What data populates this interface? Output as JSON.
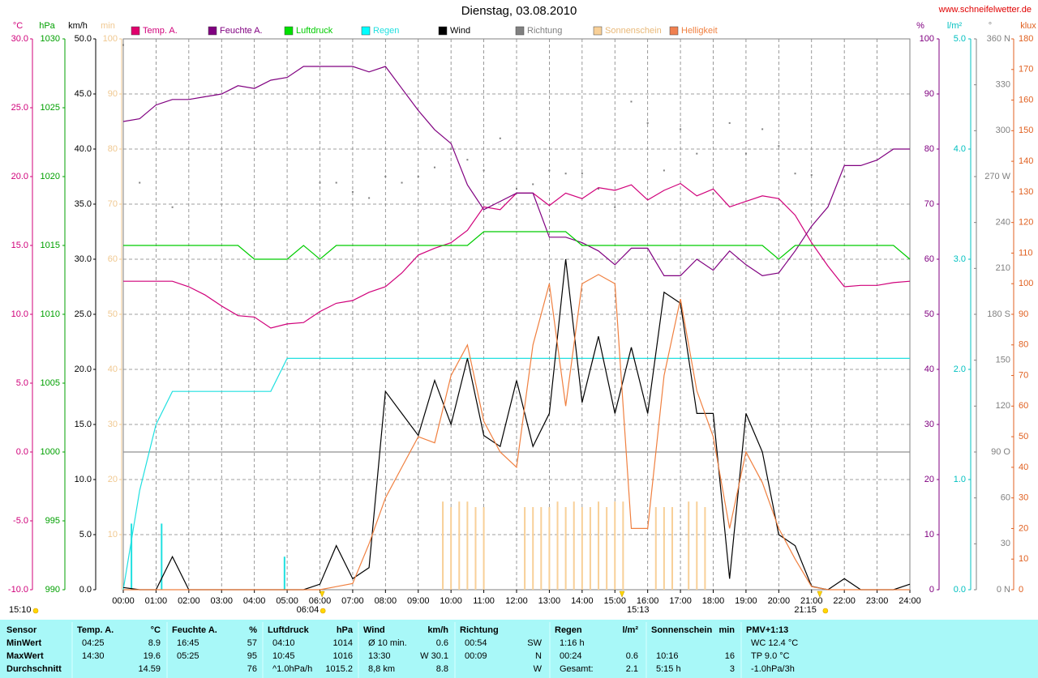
{
  "chart_data": {
    "type": "line",
    "title": "Dienstag, 03.08.2010",
    "source": "www.schneifelwetter.de",
    "xlim": [
      0,
      24
    ],
    "xticks": [
      {
        "value": 0,
        "label": "00:00"
      },
      {
        "value": 1,
        "label": "01:00"
      },
      {
        "value": 2,
        "label": "02:00"
      },
      {
        "value": 3,
        "label": "03:00"
      },
      {
        "value": 4,
        "label": "04:00"
      },
      {
        "value": 5,
        "label": "05:00"
      },
      {
        "value": 6,
        "label": "06:00"
      },
      {
        "value": 7,
        "label": "07:00"
      },
      {
        "value": 8,
        "label": "08:00"
      },
      {
        "value": 9,
        "label": "09:00"
      },
      {
        "value": 10,
        "label": "10:00"
      },
      {
        "value": 11,
        "label": "11:00"
      },
      {
        "value": 12,
        "label": "12:00"
      },
      {
        "value": 13,
        "label": "13:00"
      },
      {
        "value": 14,
        "label": "14:00"
      },
      {
        "value": 15,
        "label": "15:00"
      },
      {
        "value": 16,
        "label": "16:00"
      },
      {
        "value": 17,
        "label": "17:00"
      },
      {
        "value": 18,
        "label": "18:00"
      },
      {
        "value": 19,
        "label": "19:00"
      },
      {
        "value": 20,
        "label": "20:00"
      },
      {
        "value": 21,
        "label": "21:00"
      },
      {
        "value": 22,
        "label": "22:00"
      },
      {
        "value": 23,
        "label": "23:00"
      },
      {
        "value": 24,
        "label": "24:00"
      }
    ],
    "grid": true,
    "grid_axis": 2,
    "axes": [
      {
        "unit": "°C",
        "color": "#d0007a",
        "lim": [
          -10,
          30
        ],
        "ticks": [
          {
            "value": -10,
            "label": "-10.0"
          },
          {
            "value": -5,
            "label": "-5.0"
          },
          {
            "value": 0,
            "label": "0.0"
          },
          {
            "value": 5,
            "label": "5.0"
          },
          {
            "value": 10,
            "label": "10.0"
          },
          {
            "value": 15,
            "label": "15.0"
          },
          {
            "value": 20,
            "label": "20.0"
          },
          {
            "value": 25,
            "label": "25.0"
          },
          {
            "value": 30,
            "label": "30.0"
          }
        ]
      },
      {
        "unit": "hPa",
        "color": "#00a000",
        "lim": [
          990,
          1030
        ],
        "ticks": [
          990,
          995,
          1000,
          1005,
          1010,
          1015,
          1020,
          1025,
          1030
        ]
      },
      {
        "unit": "km/h",
        "color": "#000000",
        "lim": [
          0,
          50
        ],
        "ticks": [
          {
            "value": 0,
            "label": "0.0"
          },
          {
            "value": 5,
            "label": "5.0"
          },
          {
            "value": 10,
            "label": "10.0"
          },
          {
            "value": 15,
            "label": "15.0"
          },
          {
            "value": 20,
            "label": "20.0"
          },
          {
            "value": 25,
            "label": "25.0"
          },
          {
            "value": 30,
            "label": "30.0"
          },
          {
            "value": 35,
            "label": "35.0"
          },
          {
            "value": 40,
            "label": "40.0"
          },
          {
            "value": 45,
            "label": "45.0"
          },
          {
            "value": 50,
            "label": "50.0"
          }
        ]
      },
      {
        "unit": "min",
        "color": "#f0c890",
        "lim": [
          0,
          100
        ],
        "ticks": [
          10,
          20,
          30,
          40,
          50,
          60,
          70,
          80,
          90,
          100
        ]
      },
      {
        "unit": "%",
        "color": "#800080",
        "lim": [
          0,
          100
        ],
        "ticks": [
          0,
          10,
          20,
          30,
          40,
          50,
          60,
          70,
          80,
          90,
          100
        ]
      },
      {
        "unit": "l/m²",
        "color": "#00c0c0",
        "lim": [
          0,
          5
        ],
        "ticks": [
          {
            "value": 0,
            "label": "0.0"
          },
          {
            "value": 1,
            "label": "1.0"
          },
          {
            "value": 2,
            "label": "2.0"
          },
          {
            "value": 3,
            "label": "3.0"
          },
          {
            "value": 4,
            "label": "4.0"
          },
          {
            "value": 5,
            "label": "5.0"
          }
        ]
      },
      {
        "unit": "°",
        "color": "#808080",
        "lim": [
          0,
          360
        ],
        "ticks": [
          {
            "value": 0,
            "label": "0 N"
          },
          30,
          60,
          {
            "value": 90,
            "label": "90 O"
          },
          120,
          150,
          {
            "value": 180,
            "label": "180 S"
          },
          210,
          240,
          {
            "value": 270,
            "label": "270 W"
          },
          300,
          330,
          {
            "value": 360,
            "label": "360 N"
          }
        ]
      },
      {
        "unit": "klux",
        "color": "#e06020",
        "lim": [
          0,
          180
        ],
        "ticks": [
          0,
          10,
          20,
          30,
          40,
          50,
          60,
          70,
          80,
          90,
          100,
          110,
          120,
          130,
          140,
          150,
          160,
          170,
          180
        ]
      }
    ],
    "x": [
      0,
      0.5,
      1,
      1.5,
      2,
      2.5,
      3,
      3.5,
      4,
      4.5,
      5,
      5.5,
      6,
      6.5,
      7,
      7.5,
      8,
      8.5,
      9,
      9.5,
      10,
      10.5,
      11,
      11.5,
      12,
      12.5,
      13,
      13.5,
      14,
      14.5,
      15,
      15.5,
      16,
      16.5,
      17,
      17.5,
      18,
      18.5,
      19,
      19.5,
      20,
      20.5,
      21,
      21.5,
      22,
      22.5,
      23,
      23.5,
      24
    ],
    "series": [
      {
        "name": "Temp. A.",
        "color": "#d0007a",
        "legend_color": "#e0006c",
        "axis": 0,
        "type": "line",
        "values": [
          12.4,
          12.4,
          12.4,
          12.4,
          12.0,
          11.4,
          10.6,
          9.9,
          9.8,
          9.0,
          9.3,
          9.4,
          10.2,
          10.8,
          11.0,
          11.6,
          12.0,
          13.0,
          14.3,
          14.8,
          15.2,
          16.1,
          17.8,
          17.6,
          18.8,
          18.8,
          17.9,
          18.8,
          18.4,
          19.2,
          19.0,
          19.4,
          18.3,
          19.0,
          19.5,
          18.6,
          19.1,
          17.8,
          18.2,
          18.6,
          18.4,
          17.2,
          15.2,
          13.5,
          12.0,
          12.1,
          12.1,
          12.3,
          12.4
        ]
      },
      {
        "name": "Feuchte A.",
        "color": "#800080",
        "legend_color": "#800080",
        "axis": 4,
        "type": "line",
        "values": [
          85,
          85.5,
          88,
          89,
          89,
          89.5,
          90,
          91.5,
          91,
          92.5,
          93,
          95,
          95,
          95,
          95,
          94,
          95,
          91,
          87,
          83.5,
          81,
          73.5,
          69,
          70.5,
          72,
          72,
          64,
          64,
          63,
          61.5,
          59,
          62,
          62,
          57,
          57,
          60,
          58,
          61.5,
          59,
          57,
          57.5,
          61.5,
          66,
          69.5,
          77,
          77,
          78,
          80,
          80
        ]
      },
      {
        "name": "Luftdruck",
        "color": "#00cc00",
        "legend_color": "#00e000",
        "axis": 1,
        "type": "line",
        "values": [
          1015,
          1015,
          1015,
          1015,
          1015,
          1015,
          1015,
          1015,
          1014,
          1014,
          1014,
          1015,
          1014,
          1015,
          1015,
          1015,
          1015,
          1015,
          1015,
          1015,
          1015,
          1015,
          1016,
          1016,
          1016,
          1016,
          1016,
          1016,
          1015,
          1015,
          1015,
          1015,
          1015,
          1015,
          1015,
          1015,
          1015,
          1015,
          1015,
          1015,
          1014,
          1015,
          1015,
          1015,
          1015,
          1015,
          1015,
          1015,
          1014
        ]
      },
      {
        "name": "Regen",
        "color": "#20e0e0",
        "legend_color": "#00ffff",
        "axis": 5,
        "type": "line",
        "values": [
          0,
          0.9,
          1.5,
          1.8,
          1.8,
          1.8,
          1.8,
          1.8,
          1.8,
          1.8,
          2.1,
          2.1,
          2.1,
          2.1,
          2.1,
          2.1,
          2.1,
          2.1,
          2.1,
          2.1,
          2.1,
          2.1,
          2.1,
          2.1,
          2.1,
          2.1,
          2.1,
          2.1,
          2.1,
          2.1,
          2.1,
          2.1,
          2.1,
          2.1,
          2.1,
          2.1,
          2.1,
          2.1,
          2.1,
          2.1,
          2.1,
          2.1,
          2.1,
          2.1,
          2.1,
          2.1,
          2.1,
          2.1,
          2.1
        ],
        "bars": {
          "x": [
            0.25,
            1.17,
            4.92
          ],
          "values": [
            0.6,
            0.6,
            0.3
          ]
        }
      },
      {
        "name": "Wind",
        "color": "#000000",
        "legend_color": "#000000",
        "axis": 2,
        "type": "line",
        "values": [
          0.2,
          0,
          0,
          3,
          0,
          0,
          0,
          0,
          0,
          0,
          0,
          0,
          0.5,
          4,
          1,
          2,
          18,
          16,
          14,
          19,
          15,
          21,
          14,
          13,
          19,
          13,
          16,
          30,
          17,
          23,
          16,
          22,
          16,
          27,
          26,
          16,
          16,
          1,
          16,
          12.5,
          5,
          4,
          0.3,
          0,
          1,
          0,
          0,
          0,
          0.5
        ]
      },
      {
        "name": "Richtung",
        "color": "#808080",
        "legend_color": "#808080",
        "axis": 6,
        "type": "dots",
        "values": [
          356,
          266,
          null,
          250,
          null,
          null,
          null,
          null,
          null,
          null,
          null,
          null,
          266,
          266,
          260,
          256,
          270,
          266,
          270,
          276,
          288,
          281,
          274,
          295,
          262,
          265,
          274,
          272,
          272,
          262,
          250,
          319,
          305,
          274,
          301,
          285,
          259,
          305,
          285,
          301,
          290,
          272,
          271,
          null,
          270,
          null,
          null,
          null,
          null
        ]
      },
      {
        "name": "Sonnenschein",
        "color": "#f8d098",
        "legend_color": "#f8d098",
        "axis": 3,
        "type": "bar",
        "x": [
          9.75,
          10,
          10.25,
          10.5,
          10.75,
          11,
          12.25,
          12.5,
          12.75,
          13,
          13.25,
          13.5,
          13.75,
          14,
          14.25,
          14.5,
          14.75,
          15,
          15.25,
          16.25,
          16.5,
          16.75,
          17.25,
          17.5,
          17.75
        ],
        "values": [
          16,
          15,
          16,
          16,
          15,
          15,
          15,
          15,
          15,
          15,
          16,
          15,
          16,
          15,
          15,
          16,
          15,
          16,
          16,
          15,
          15,
          15,
          16,
          16,
          15
        ]
      },
      {
        "name": "Helligkeit",
        "color": "#f08040",
        "legend_color": "#f08050",
        "axis": 7,
        "type": "line",
        "values": [
          0,
          0,
          0,
          0,
          0,
          0,
          0,
          0,
          0,
          0,
          0,
          0,
          0,
          1,
          2,
          15,
          30,
          40,
          50,
          48,
          70,
          80,
          55,
          45,
          40,
          80,
          100,
          60,
          100,
          103,
          100,
          20,
          20,
          70,
          95,
          65,
          50,
          20,
          45,
          35,
          20,
          10,
          1,
          0,
          0,
          0,
          0,
          0,
          0
        ]
      }
    ],
    "sun": {
      "day_length": "15:10",
      "events": [
        {
          "x": 6.067,
          "label": "06:04"
        },
        {
          "x": 15.217,
          "label": "15:13"
        },
        {
          "x": 21.25,
          "label": "21:15"
        }
      ]
    }
  },
  "table": {
    "header": [
      {
        "l": "Sensor"
      },
      {
        "l": "Temp. A.",
        "r": "°C"
      },
      {
        "l": "Feuchte A.",
        "r": "%"
      },
      {
        "l": "Luftdruck",
        "r": "hPa"
      },
      {
        "l": "Wind",
        "r": "km/h"
      },
      {
        "l": "Richtung"
      },
      {
        "l": "Regen",
        "r": "l/m²"
      },
      {
        "l": "Sonnenschein",
        "r": "min"
      },
      {
        "l": "PMV+1:13"
      }
    ],
    "rows": [
      [
        {
          "l": "MinWert"
        },
        {
          "l": "04:25",
          "r": "8.9"
        },
        {
          "l": "16:45",
          "r": "57"
        },
        {
          "l": "04:10",
          "r": "1014"
        },
        {
          "l": "Ø 10 min.",
          "r": "0.6"
        },
        {
          "l": "00:54",
          "r": "SW"
        },
        {
          "l": "1:16 h"
        },
        null,
        {
          "l": "WC 12.4 °C"
        }
      ],
      [
        {
          "l": "MaxWert"
        },
        {
          "l": "14:30",
          "r": "19.6"
        },
        {
          "l": "05:25",
          "r": "95"
        },
        {
          "l": "10:45",
          "r": "1016"
        },
        {
          "l": "13:30",
          "r": "W 30.1"
        },
        {
          "l": "00:09",
          "r": "N"
        },
        {
          "l": "00:24",
          "r": "0.6"
        },
        {
          "l": "10:16",
          "r": "16"
        },
        {
          "l": "TP 9.0 °C"
        }
      ],
      [
        {
          "l": "Durchschnitt"
        },
        {
          "r": "14.59"
        },
        {
          "r": "76"
        },
        {
          "l": "^1.0hPa/h",
          "r": "1015.2"
        },
        {
          "l": "8,8 km",
          "r": "8.8"
        },
        {
          "r": "W"
        },
        {
          "l": "Gesamt:",
          "r": "2.1"
        },
        {
          "l": "5:15 h",
          "r": "3"
        },
        {
          "l": "-1.0hPa/3h"
        }
      ]
    ]
  }
}
